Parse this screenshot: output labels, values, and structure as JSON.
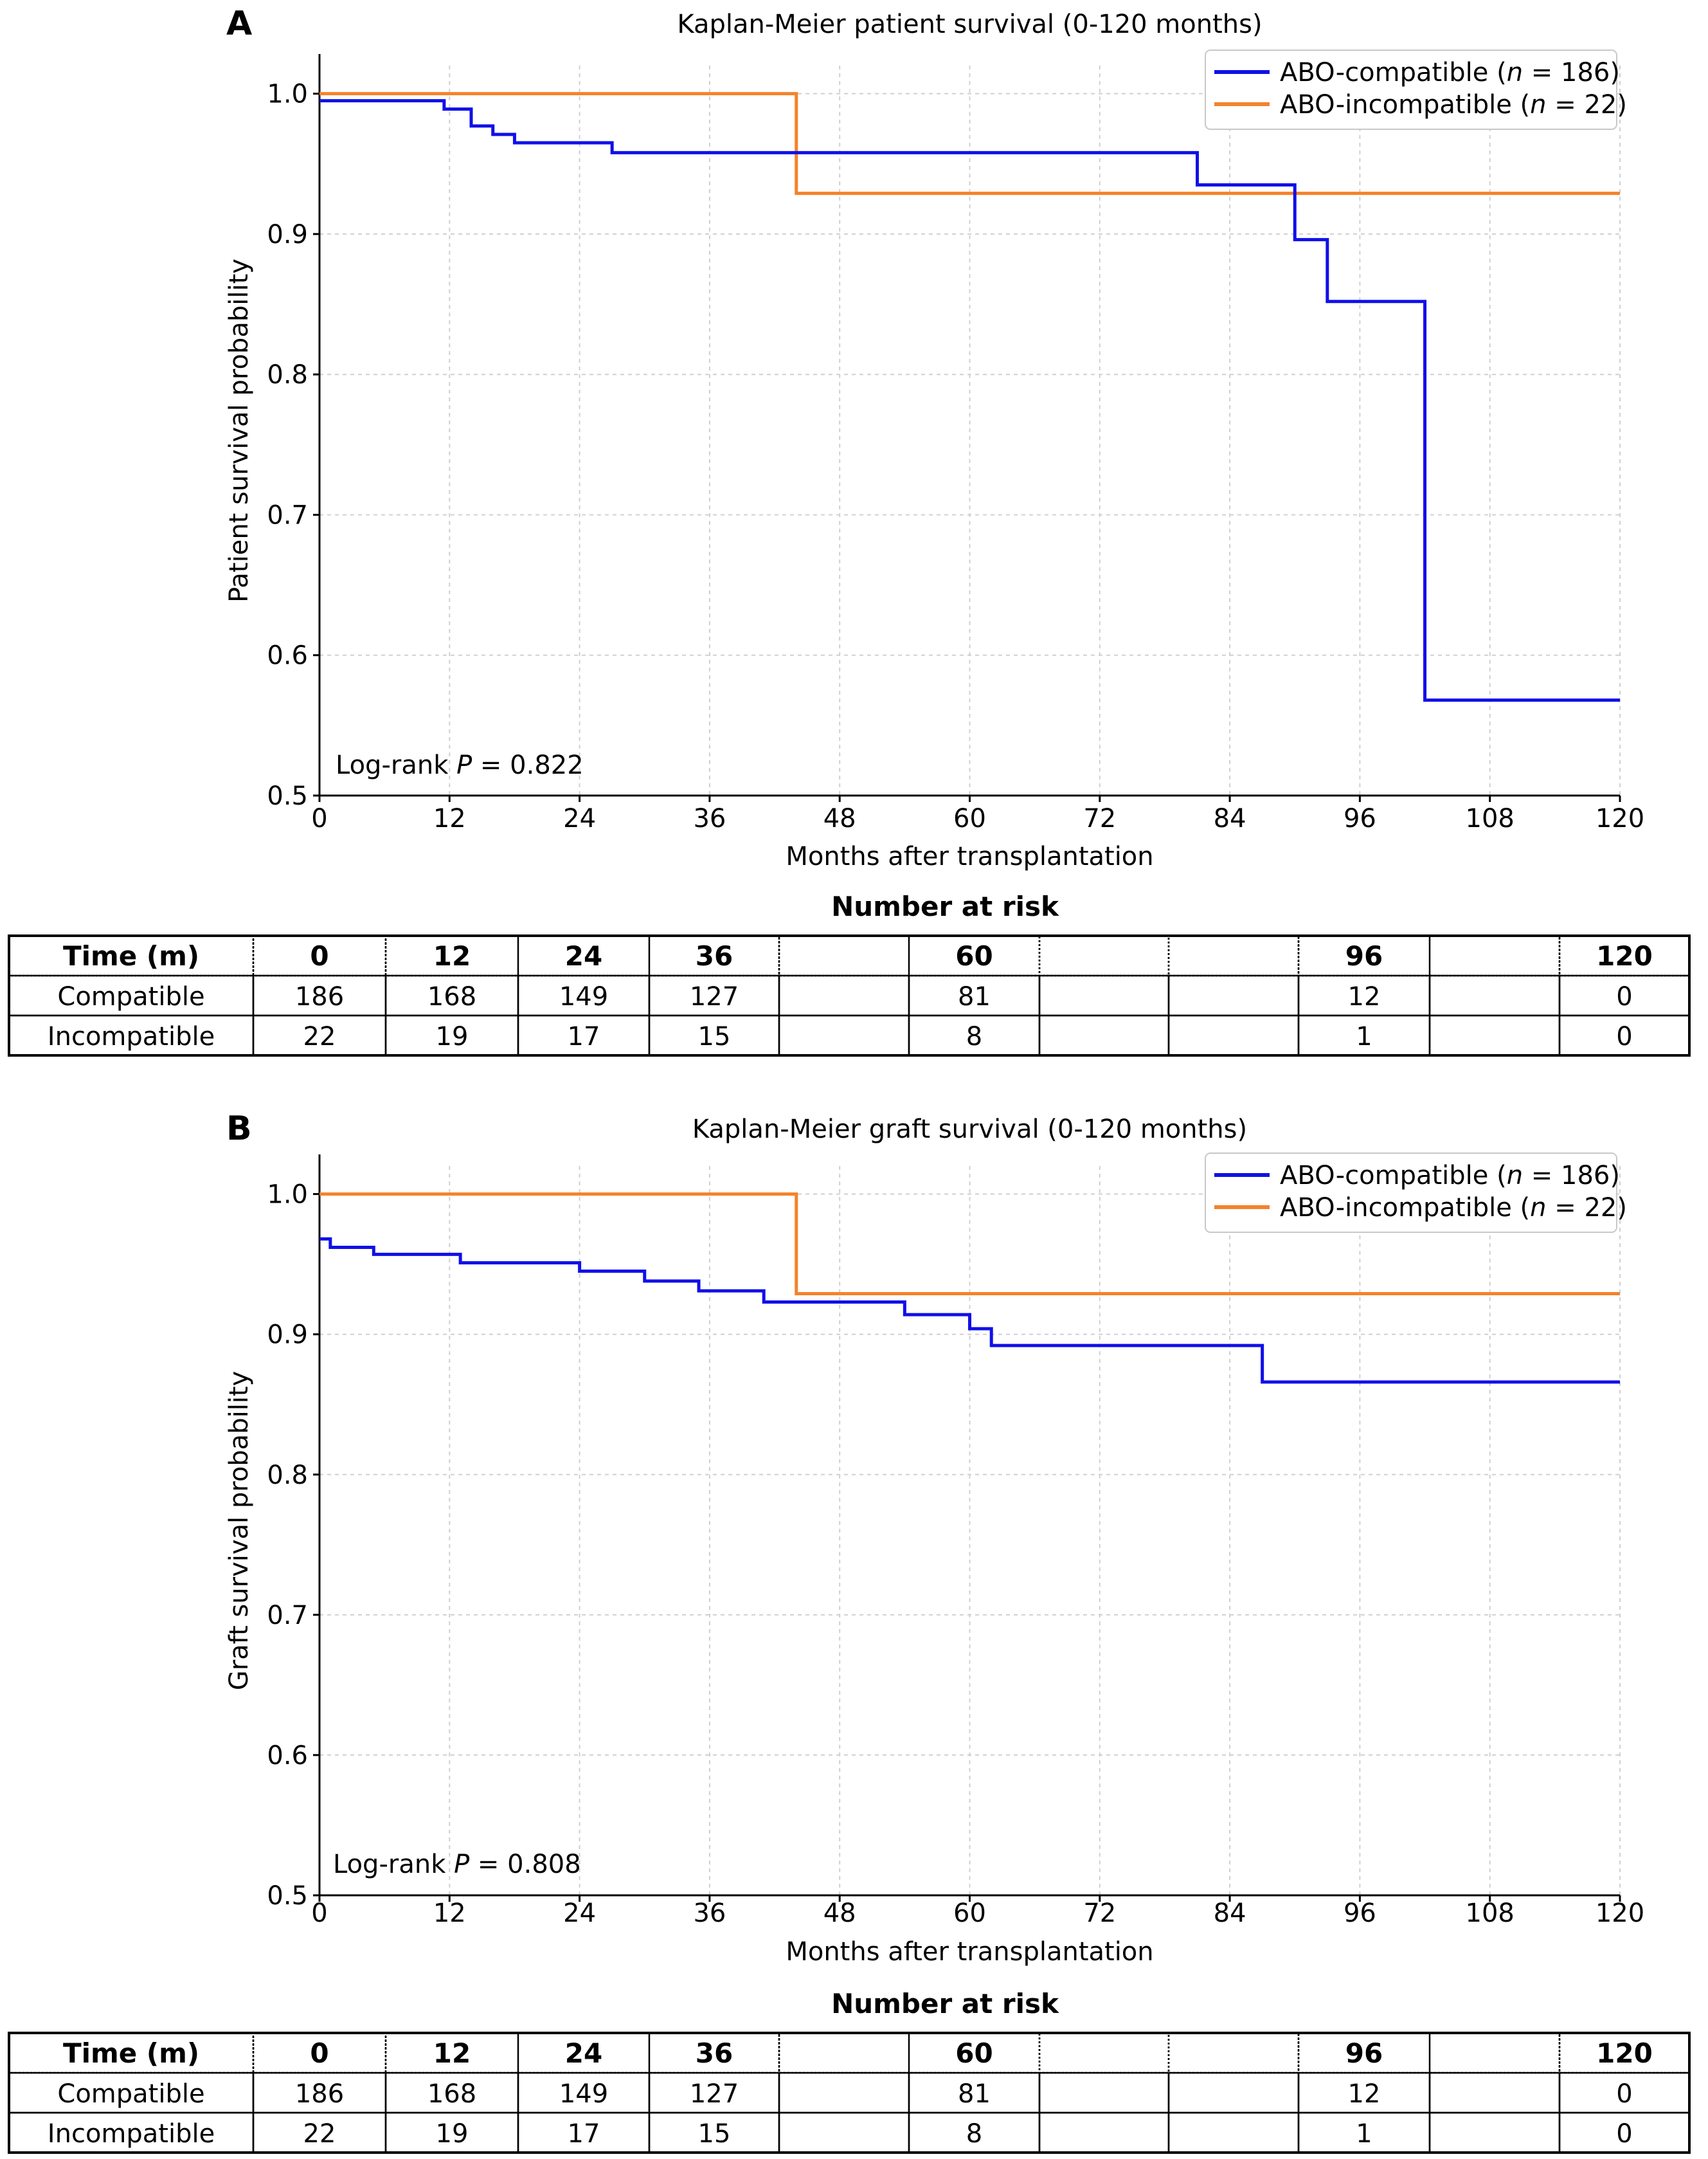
{
  "panels": [
    {
      "letter": "A",
      "chart_data": {
        "type": "line",
        "step": true,
        "title": "Kaplan-Meier patient survival (0-120 months)",
        "xlabel": "Months after transplantation",
        "ylabel": "Patient survival probability",
        "xlim": [
          0,
          120
        ],
        "ylim": [
          0.5,
          1.02
        ],
        "xticks": [
          0,
          12,
          24,
          36,
          48,
          60,
          72,
          84,
          96,
          108,
          120
        ],
        "yticks": [
          0.5,
          0.6,
          0.7,
          0.8,
          0.9,
          1.0
        ],
        "grid": true,
        "legend_position": "top-right",
        "annotation": {
          "prefix": "Log-rank ",
          "italic": "P",
          "suffix": " = 0.822"
        },
        "series": [
          {
            "legend_prefix": "ABO-compatible (",
            "legend_italic": "n",
            "legend_suffix": " = 186)",
            "color": "#1010e8",
            "x": [
              0,
              11.5,
              14,
              16,
              18,
              27,
              81,
              90,
              93,
              102,
              120
            ],
            "y": [
              0.995,
              0.989,
              0.977,
              0.971,
              0.965,
              0.958,
              0.935,
              0.896,
              0.852,
              0.568,
              0.568
            ]
          },
          {
            "legend_prefix": "ABO-incompatible (",
            "legend_italic": "n",
            "legend_suffix": " = 22)",
            "color": "#f5822a",
            "x": [
              0,
              44,
              120
            ],
            "y": [
              1.0,
              0.929,
              0.929
            ]
          }
        ]
      },
      "risk": {
        "title": "Number at risk",
        "header": [
          "Time (m)",
          "0",
          "12",
          "24",
          "36",
          "",
          "60",
          "",
          "",
          "96",
          "",
          "120"
        ],
        "rows": [
          [
            "Compatible",
            "186",
            "168",
            "149",
            "127",
            "",
            "81",
            "",
            "",
            "12",
            "",
            "0"
          ],
          [
            "Incompatible",
            "22",
            "19",
            "17",
            "15",
            "",
            "8",
            "",
            "",
            "1",
            "",
            "0"
          ]
        ]
      }
    },
    {
      "letter": "B",
      "chart_data": {
        "type": "line",
        "step": true,
        "title": "Kaplan-Meier graft survival (0-120 months)",
        "xlabel": "Months after transplantation",
        "ylabel": "Graft survival probability",
        "xlim": [
          0,
          120
        ],
        "ylim": [
          0.5,
          1.02
        ],
        "xticks": [
          0,
          12,
          24,
          36,
          48,
          60,
          72,
          84,
          96,
          108,
          120
        ],
        "yticks": [
          0.5,
          0.6,
          0.7,
          0.8,
          0.9,
          1.0
        ],
        "grid": true,
        "legend_position": "top-right",
        "annotation": {
          "prefix": "Log-rank ",
          "italic": "P",
          "suffix": " = 0.808"
        },
        "series": [
          {
            "legend_prefix": "ABO-compatible (",
            "legend_italic": "n",
            "legend_suffix": " = 186)",
            "color": "#1010e8",
            "x": [
              0,
              1,
              5,
              13,
              24,
              30,
              35,
              41,
              54,
              60,
              62,
              87,
              120
            ],
            "y": [
              0.968,
              0.962,
              0.957,
              0.951,
              0.945,
              0.938,
              0.931,
              0.923,
              0.914,
              0.904,
              0.892,
              0.866,
              0.866
            ]
          },
          {
            "legend_prefix": "ABO-incompatible (",
            "legend_italic": "n",
            "legend_suffix": " = 22)",
            "color": "#f5822a",
            "x": [
              0,
              44,
              120
            ],
            "y": [
              1.0,
              0.929,
              0.929
            ]
          }
        ]
      },
      "risk": {
        "title": "Number at risk",
        "header": [
          "Time (m)",
          "0",
          "12",
          "24",
          "36",
          "",
          "60",
          "",
          "",
          "96",
          "",
          "120"
        ],
        "rows": [
          [
            "Compatible",
            "186",
            "168",
            "149",
            "127",
            "",
            "81",
            "",
            "",
            "12",
            "",
            "0"
          ],
          [
            "Incompatible",
            "22",
            "19",
            "17",
            "15",
            "",
            "8",
            "",
            "",
            "1",
            "",
            "0"
          ]
        ]
      }
    }
  ]
}
